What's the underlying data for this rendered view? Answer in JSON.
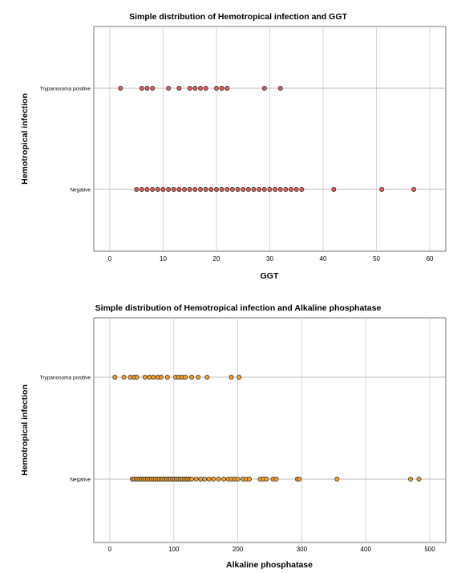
{
  "chart_data": [
    {
      "type": "scatter",
      "title": "Simple distribution of Hemotropical infection and GGT",
      "xlabel": "GGT",
      "ylabel": "Hemotropical infection",
      "xlim": [
        -3,
        63
      ],
      "xticks": [
        0,
        10,
        20,
        30,
        40,
        50,
        60
      ],
      "categories": [
        "Trypanosoma positive",
        "Negative"
      ],
      "grid": true,
      "point_color": "#e05a5a",
      "series": [
        {
          "category": "Trypanosoma positive",
          "x": [
            2,
            6,
            7,
            8,
            11,
            13,
            15,
            16,
            17,
            18,
            20,
            21,
            22,
            29,
            32
          ]
        },
        {
          "category": "Negative",
          "x": [
            5,
            6,
            7,
            8,
            9,
            10,
            11,
            12,
            13,
            14,
            15,
            16,
            17,
            18,
            19,
            20,
            21,
            22,
            23,
            24,
            25,
            26,
            27,
            28,
            29,
            30,
            31,
            32,
            33,
            34,
            35,
            36,
            42,
            51,
            57
          ]
        }
      ]
    },
    {
      "type": "scatter",
      "title": "Simple distribution of Hemotropical infection and Alkaline phosphatase",
      "xlabel": "Alkaline phosphatase",
      "ylabel": "Hemotropical infection",
      "xlim": [
        -25,
        525
      ],
      "xticks": [
        0,
        100,
        200,
        300,
        400,
        500
      ],
      "categories": [
        "Trypanosoma positive",
        "Negative"
      ],
      "grid": true,
      "point_color": "#f0a030",
      "series": [
        {
          "category": "Trypanosoma positive",
          "x": [
            8,
            22,
            32,
            38,
            42,
            55,
            62,
            68,
            75,
            80,
            90,
            103,
            108,
            113,
            118,
            128,
            138,
            152,
            190,
            202
          ]
        },
        {
          "category": "Negative",
          "x": [
            35,
            38,
            41,
            44,
            47,
            50,
            53,
            56,
            59,
            62,
            65,
            68,
            71,
            74,
            77,
            80,
            83,
            86,
            89,
            92,
            95,
            98,
            101,
            104,
            107,
            110,
            113,
            116,
            119,
            122,
            125,
            128,
            135,
            142,
            148,
            155,
            162,
            170,
            178,
            185,
            190,
            195,
            200,
            208,
            213,
            218,
            235,
            240,
            245,
            255,
            260,
            293,
            296,
            355,
            470,
            483
          ]
        }
      ]
    }
  ]
}
